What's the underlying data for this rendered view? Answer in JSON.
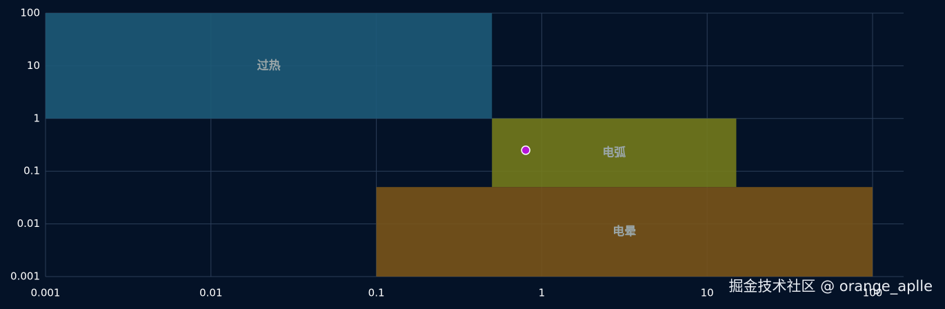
{
  "chart_data": {
    "type": "scatter",
    "xlim": [
      0.001,
      100
    ],
    "xticks": [
      0.001,
      0.01,
      0.1,
      1,
      10,
      100
    ],
    "ylim": [
      0.001,
      100
    ],
    "yticks": [
      0.001,
      0.01,
      0.1,
      1,
      10,
      100
    ],
    "log_x": true,
    "log_y": true,
    "grid": true,
    "regions": [
      {
        "name": "过热",
        "color": "#1d5a78",
        "x": [
          0.001,
          0.5
        ],
        "y": [
          1,
          100
        ]
      },
      {
        "name": "电弧",
        "color": "#737a1c",
        "x": [
          0.5,
          15
        ],
        "y": [
          0.05,
          1
        ]
      },
      {
        "name": "电晕",
        "color": "#79541a",
        "x": [
          0.1,
          100
        ],
        "y": [
          0.001,
          0.05
        ]
      }
    ],
    "series": [
      {
        "color": "#b515d8",
        "x": [
          0.8
        ],
        "values": [
          0.25
        ]
      }
    ],
    "annotation": "掘金技术社区 @ orange_aplle"
  }
}
